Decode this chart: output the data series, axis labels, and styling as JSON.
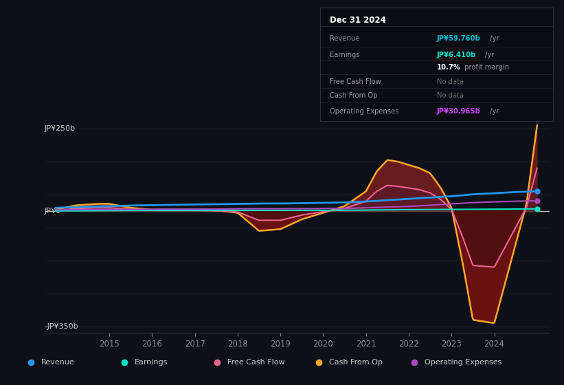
{
  "bg_color": "#0d1117",
  "ylim": [
    -370,
    290
  ],
  "xlim": [
    2013.5,
    2025.3
  ],
  "xticks": [
    2015,
    2016,
    2017,
    2018,
    2019,
    2020,
    2021,
    2022,
    2023,
    2024
  ],
  "grid_color": "#1e2130",
  "zero_line_color": "#cccccc",
  "colors": {
    "revenue": "#2196f3",
    "earnings": "#00e5c3",
    "free_cash_flow": "#f06292",
    "cash_from_op": "#ffa726",
    "operating_expenses": "#ab47bc"
  },
  "legend": [
    {
      "label": "Revenue",
      "color": "#2196f3"
    },
    {
      "label": "Earnings",
      "color": "#00e5c3"
    },
    {
      "label": "Free Cash Flow",
      "color": "#f06292"
    },
    {
      "label": "Cash From Op",
      "color": "#ffa726"
    },
    {
      "label": "Operating Expenses",
      "color": "#ab47bc"
    }
  ],
  "infobox": {
    "title": "Dec 31 2024",
    "rows": [
      {
        "label": "Revenue",
        "value": "JP¥59.760b",
        "suffix": " /yr",
        "color": "#00bcd4",
        "dimmed": false
      },
      {
        "label": "Earnings",
        "value": "JP¥6.410b",
        "suffix": " /yr",
        "color": "#00e5c3",
        "dimmed": false
      },
      {
        "label": "",
        "value": "10.7%",
        "suffix": " profit margin",
        "color": "#ffffff",
        "dimmed": false
      },
      {
        "label": "Free Cash Flow",
        "value": "No data",
        "suffix": "",
        "color": "#666666",
        "dimmed": true
      },
      {
        "label": "Cash From Op",
        "value": "No data",
        "suffix": "",
        "color": "#666666",
        "dimmed": true
      },
      {
        "label": "Operating Expenses",
        "value": "JP¥30.965b",
        "suffix": " /yr",
        "color": "#cc44ff",
        "dimmed": false
      }
    ]
  },
  "x_knots": [
    2013.75,
    2014.25,
    2014.75,
    2015.0,
    2015.5,
    2016.0,
    2016.5,
    2017.0,
    2017.5,
    2018.0,
    2018.5,
    2019.0,
    2019.5,
    2020.0,
    2020.5,
    2021.0,
    2021.25,
    2021.5,
    2021.75,
    2022.0,
    2022.25,
    2022.5,
    2022.75,
    2023.0,
    2023.25,
    2023.5,
    2024.0,
    2024.5,
    2024.75,
    2025.0
  ],
  "revenue_knots": [
    10,
    12,
    14,
    15,
    17,
    18,
    19,
    20,
    21,
    22,
    23,
    23,
    24,
    25,
    26,
    29,
    31,
    33,
    35,
    37,
    39,
    41,
    43,
    45,
    48,
    51,
    54,
    58,
    59,
    60
  ],
  "earnings_knots": [
    0.5,
    1.0,
    1.2,
    1.5,
    2.0,
    2.0,
    2.0,
    2.0,
    2.0,
    1.8,
    1.8,
    2.0,
    2.0,
    2.2,
    2.5,
    3.0,
    3.5,
    4.0,
    4.2,
    4.5,
    4.8,
    5.0,
    5.2,
    5.3,
    5.5,
    5.7,
    6.0,
    6.2,
    6.3,
    6.4
  ],
  "cashop_knots": [
    5,
    18,
    22,
    22,
    10,
    4,
    4,
    4,
    2,
    -5,
    -60,
    -55,
    -25,
    -5,
    15,
    60,
    120,
    155,
    150,
    140,
    130,
    115,
    70,
    10,
    -150,
    -330,
    -340,
    -100,
    20,
    260
  ],
  "fcf_knots": [
    2,
    8,
    10,
    10,
    5,
    2,
    2,
    2,
    1,
    -3,
    -28,
    -28,
    -12,
    -2,
    8,
    30,
    60,
    78,
    75,
    70,
    65,
    55,
    35,
    5,
    -75,
    -165,
    -170,
    -50,
    10,
    130
  ],
  "opex_knots": [
    4,
    4,
    5,
    5,
    5,
    6,
    6,
    6,
    6,
    7,
    7,
    7,
    7,
    8,
    8,
    10,
    11,
    12,
    13,
    14,
    16,
    18,
    20,
    22,
    24,
    26,
    28,
    30,
    31,
    31
  ]
}
